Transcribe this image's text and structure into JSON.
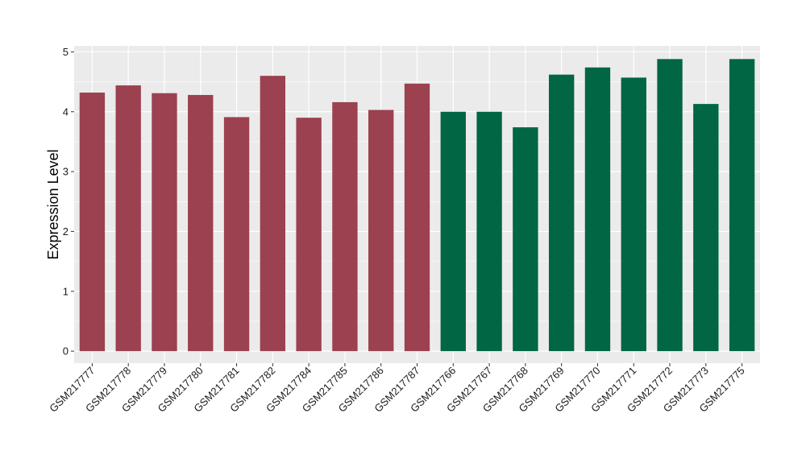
{
  "chart_data": {
    "type": "bar",
    "categories": [
      "GSM217777",
      "GSM217778",
      "GSM217779",
      "GSM217780",
      "GSM217781",
      "GSM217782",
      "GSM217784",
      "GSM217785",
      "GSM217786",
      "GSM217787",
      "GSM217766",
      "GSM217767",
      "GSM217768",
      "GSM217769",
      "GSM217770",
      "GSM217771",
      "GSM217772",
      "GSM217773",
      "GSM217775"
    ],
    "values": [
      4.32,
      4.44,
      4.31,
      4.28,
      3.91,
      4.6,
      3.9,
      4.16,
      4.03,
      4.47,
      4.0,
      4.0,
      3.74,
      4.62,
      4.74,
      4.57,
      4.88,
      4.13,
      4.88
    ],
    "bar_colors": [
      "#9b4150",
      "#9b4150",
      "#9b4150",
      "#9b4150",
      "#9b4150",
      "#9b4150",
      "#9b4150",
      "#9b4150",
      "#9b4150",
      "#9b4150",
      "#006644",
      "#006644",
      "#006644",
      "#006644",
      "#006644",
      "#006644",
      "#006644",
      "#006644",
      "#006644"
    ],
    "ylabel": "Expression Level",
    "xlabel": "",
    "ylim": [
      -0.2,
      5.1
    ],
    "yticks": [
      0,
      1,
      2,
      3,
      4,
      5
    ],
    "grid": true,
    "panel_background": "#ebebeb",
    "grid_color": "#ffffff"
  }
}
